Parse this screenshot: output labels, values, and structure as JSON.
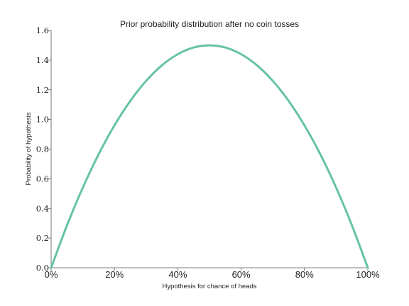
{
  "chart_data": {
    "type": "line",
    "title": "Prior probability distribution after no coin tosses",
    "xlabel": "Hypothesis for chance of heads",
    "ylabel": "Probability of hypothesis",
    "xlim": [
      0,
      1
    ],
    "ylim": [
      0,
      1.6
    ],
    "xticks": [
      0,
      0.2,
      0.4,
      0.6,
      0.8,
      1.0
    ],
    "xtick_labels": [
      "0%",
      "20%",
      "40%",
      "60%",
      "80%",
      "100%"
    ],
    "yticks": [
      0,
      0.2,
      0.4,
      0.6,
      0.8,
      1.0,
      1.2,
      1.4,
      1.6
    ],
    "ytick_labels": [
      "0.0",
      "0.2",
      "0.4",
      "0.6",
      "0.8",
      "1.0",
      "1.2",
      "1.4",
      "1.6"
    ],
    "grid": false,
    "series": [
      {
        "color": "#66c2a5",
        "x": [
          0,
          0.05,
          0.1,
          0.15,
          0.2,
          0.25,
          0.3,
          0.35,
          0.4,
          0.45,
          0.5,
          0.55,
          0.6,
          0.65,
          0.7,
          0.75,
          0.8,
          0.85,
          0.9,
          0.95,
          1.0
        ],
        "y": [
          0,
          0.285,
          0.54,
          0.765,
          0.96,
          1.125,
          1.26,
          1.365,
          1.44,
          1.485,
          1.5,
          1.485,
          1.44,
          1.365,
          1.26,
          1.125,
          0.96,
          0.765,
          0.54,
          0.285,
          0
        ]
      }
    ]
  }
}
